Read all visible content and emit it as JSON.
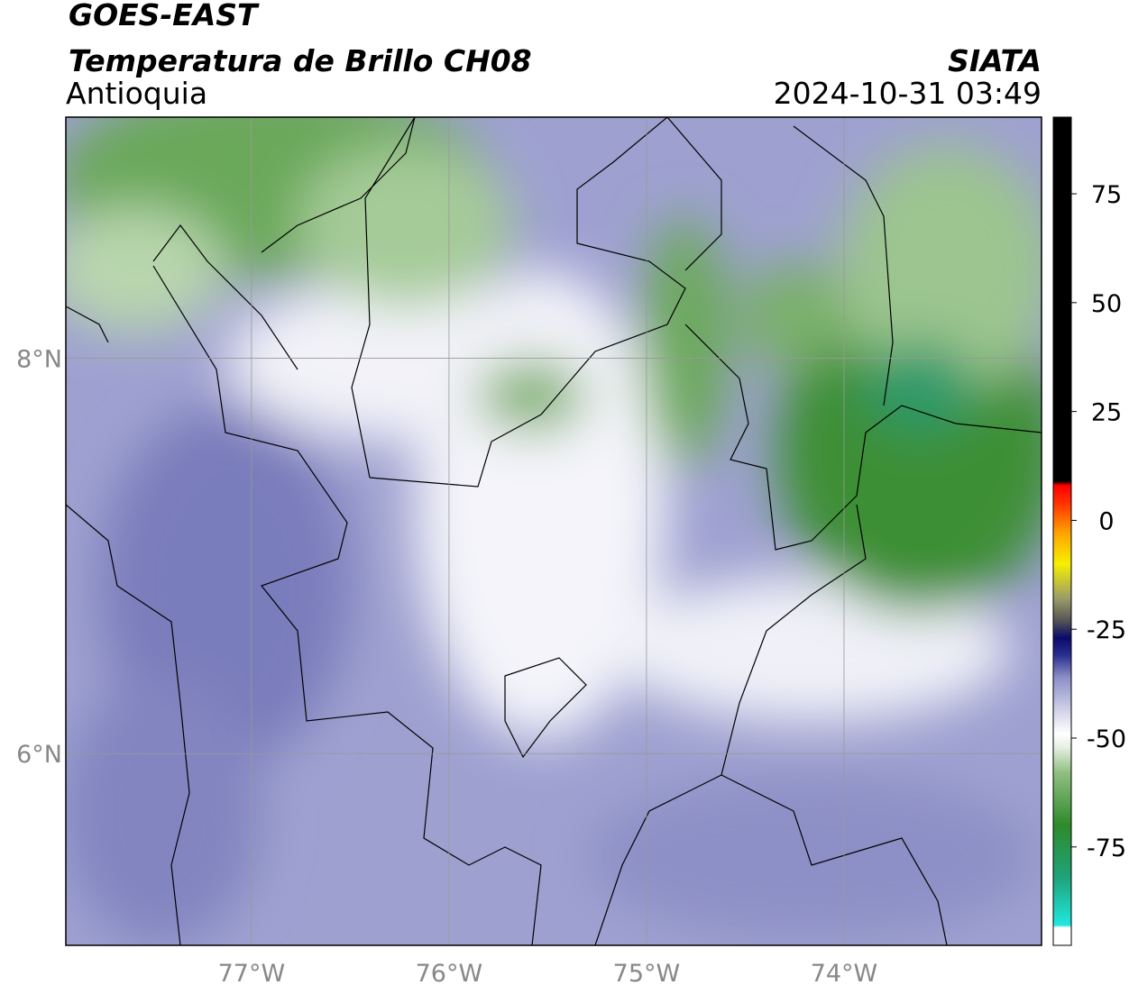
{
  "header": {
    "title": "GOES-EAST",
    "subtitle": "Temperatura de Brillo CH08",
    "region": "Antioquia",
    "source": "SIATA",
    "datetime": "2024-10-31 03:49"
  },
  "map": {
    "xlim": [
      -77.94,
      -73.0
    ],
    "ylim": [
      5.03,
      9.22
    ],
    "xticks": [
      {
        "value": -77,
        "label": "77°W"
      },
      {
        "value": -76,
        "label": "76°W"
      },
      {
        "value": -75,
        "label": "75°W"
      },
      {
        "value": -74,
        "label": "74°W"
      }
    ],
    "yticks": [
      {
        "value": 6,
        "label": "6°N"
      },
      {
        "value": 8,
        "label": "8°N"
      }
    ],
    "grid": true
  },
  "colorbar": {
    "lim": [
      -97.6,
      92.6
    ],
    "ticks": [
      -75,
      -50,
      -25,
      0,
      25,
      50,
      75
    ],
    "stops": [
      [
        -97.6,
        "#ffffff"
      ],
      [
        -93.5,
        "#ffffff"
      ],
      [
        -93,
        "#20e8e0"
      ],
      [
        -82,
        "#1fa37a"
      ],
      [
        -70,
        "#2e8a2a"
      ],
      [
        -58,
        "#8fbf80"
      ],
      [
        -52,
        "#e8f0e4"
      ],
      [
        -49,
        "#ffffff"
      ],
      [
        -44,
        "#d4d5ea"
      ],
      [
        -36,
        "#8a8ec6"
      ],
      [
        -31,
        "#2a2f90"
      ],
      [
        -27,
        "#0a0a6a"
      ],
      [
        -23,
        "#555555"
      ],
      [
        -18,
        "#9a9a6a"
      ],
      [
        -10,
        "#f6f000"
      ],
      [
        -3,
        "#ffa500"
      ],
      [
        4,
        "#ff3000"
      ],
      [
        8,
        "#ff0000"
      ],
      [
        9,
        "#000000"
      ],
      [
        92.6,
        "#000000"
      ]
    ]
  }
}
